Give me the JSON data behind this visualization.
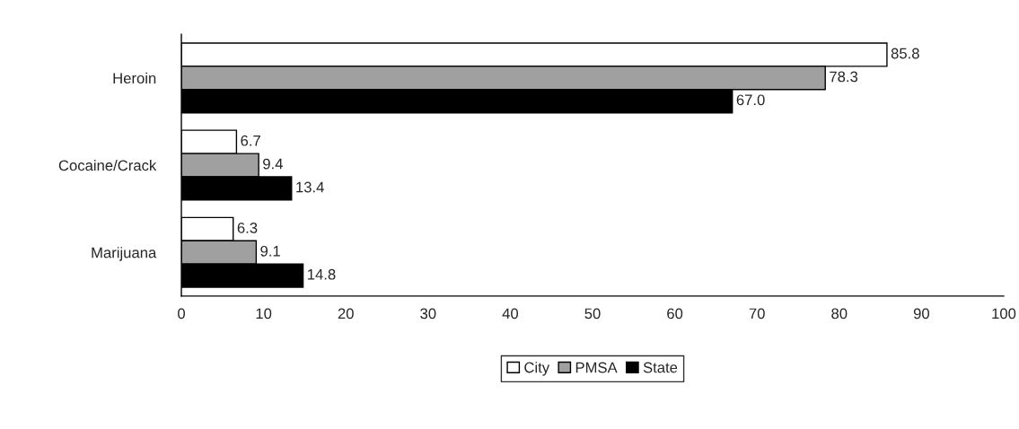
{
  "chart_data": {
    "type": "bar",
    "orientation": "horizontal",
    "categories": [
      "Heroin",
      "Cocaine/Crack",
      "Marijuana"
    ],
    "series": [
      {
        "name": "City",
        "color": "#ffffff",
        "values": [
          85.8,
          6.7,
          6.3
        ],
        "value_labels": [
          "85.8",
          "6.7",
          "6.3"
        ]
      },
      {
        "name": "PMSA",
        "color": "#a0a0a0",
        "values": [
          78.3,
          9.4,
          9.1
        ],
        "value_labels": [
          "78.3",
          "9.4",
          "9.1"
        ]
      },
      {
        "name": "State",
        "color": "#000000",
        "values": [
          67,
          13.4,
          14.8
        ],
        "value_labels": [
          "67.0",
          "13.4",
          "14.8"
        ]
      }
    ],
    "xlim": [
      0,
      100
    ],
    "xticks": [
      0,
      10,
      20,
      30,
      40,
      50,
      60,
      70,
      80,
      90,
      100
    ],
    "grid": false,
    "legend": "bottom"
  }
}
